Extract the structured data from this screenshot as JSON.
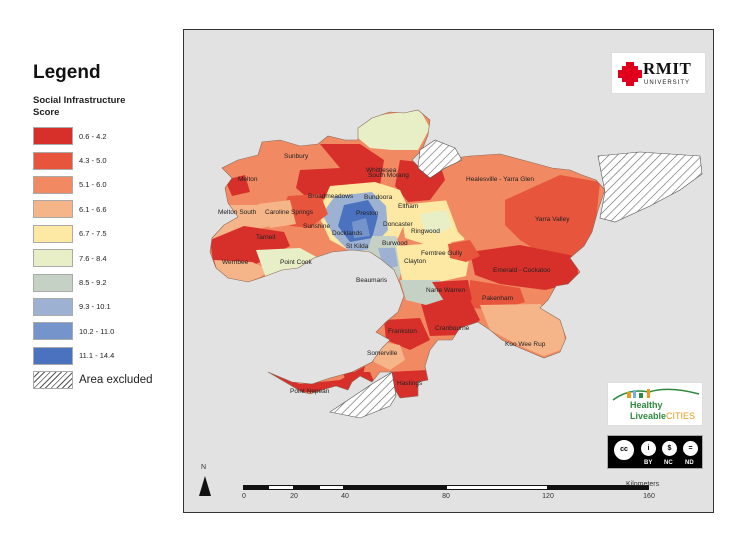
{
  "legend": {
    "title": "Legend",
    "subtitle": "Social Infrastructure Score",
    "items": [
      {
        "label": "0.6 - 4.2",
        "color": "#d7302b"
      },
      {
        "label": "4.3 - 5.0",
        "color": "#e8553d"
      },
      {
        "label": "5.1 - 6.0",
        "color": "#f18a62"
      },
      {
        "label": "6.1 - 6.6",
        "color": "#f6b588"
      },
      {
        "label": "6.7 - 7.5",
        "color": "#fde8a4"
      },
      {
        "label": "7.6 - 8.4",
        "color": "#e8efc6"
      },
      {
        "label": "8.5 - 9.2",
        "color": "#c6d1c6"
      },
      {
        "label": "9.3 - 10.1",
        "color": "#9db2d2"
      },
      {
        "label": "10.2 - 11.0",
        "color": "#7594cb"
      },
      {
        "label": "11.1 - 14.4",
        "color": "#4a72bf"
      }
    ],
    "excluded_label": "Area excluded"
  },
  "places": [
    "Whittlesea",
    "Sunbury",
    "South Morang",
    "Healesville - Yarra Glen",
    "Melton",
    "Broadmeadows",
    "Bundoora",
    "Melton South",
    "Caroline Springs",
    "Preston",
    "Eltham",
    "Yarra Valley",
    "Sunshine",
    "Doncaster",
    "Ringwood",
    "Tarneit",
    "Docklands",
    "St Kilda",
    "Burwood",
    "Werribee",
    "Point Cook",
    "Clayton",
    "Ferntree Gully",
    "Emerald - Cockatoo",
    "Beaumaris",
    "Narre Warren",
    "Pakenham",
    "Frankston",
    "Cranbourne",
    "Koo Wee Rup",
    "Somerville",
    "Hastings",
    "Point Nepean"
  ],
  "logos": {
    "rmit": {
      "name": "RMIT",
      "sub": "UNIVERSITY"
    },
    "hlc": {
      "line1": "Healthy",
      "line2a": "Liveable",
      "line2b": "CITIES"
    },
    "cc": {
      "labels": [
        "BY",
        "NC",
        "ND"
      ]
    }
  },
  "north_label": "N",
  "scale": {
    "unit_label": "Kilometers",
    "ticks": [
      "0",
      "20",
      "40",
      "80",
      "120",
      "160"
    ]
  }
}
